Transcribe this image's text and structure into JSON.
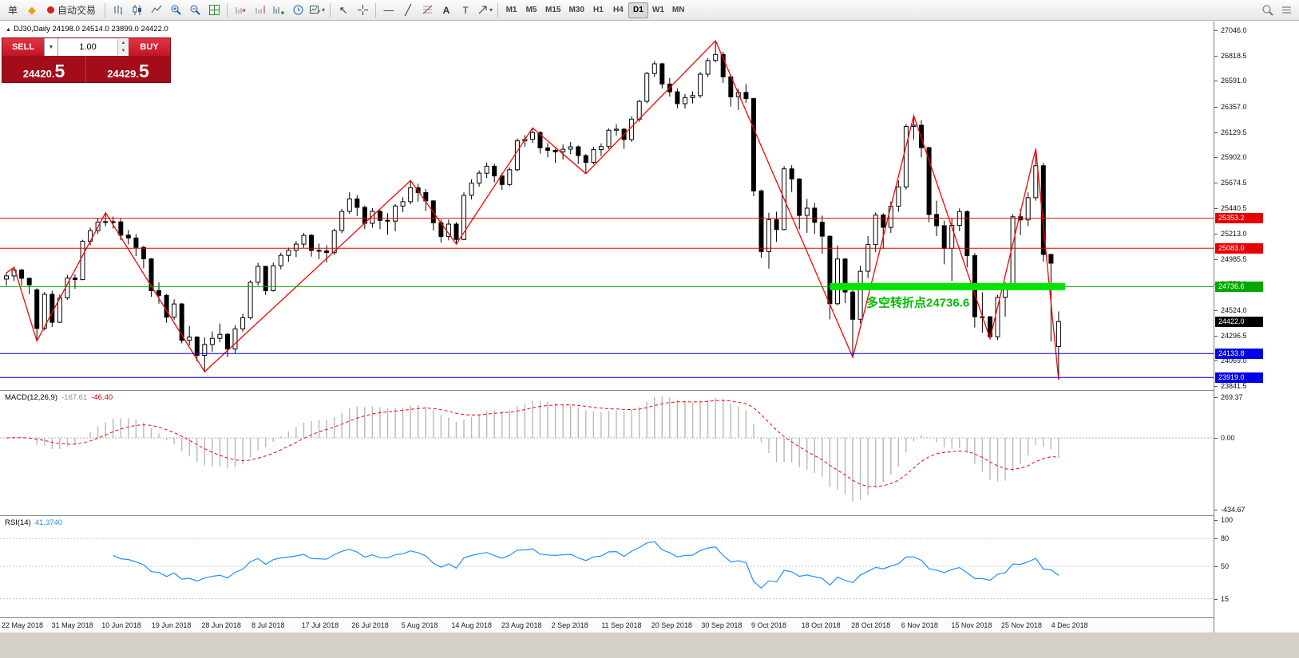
{
  "app": {
    "toolbar": {
      "order_button": "单",
      "autotrading_label": "自动交易",
      "timeframes": [
        "M1",
        "M5",
        "M15",
        "M30",
        "H1",
        "H4",
        "D1",
        "W1",
        "MN"
      ],
      "active_timeframe": "D1",
      "glyphs": {
        "diamond": "◆",
        "cursor": "↖",
        "hline": "―",
        "trendline": "╱",
        "text": "A",
        "label_tool": "T",
        "caret": "▾",
        "up": "▲",
        "down": "▼"
      }
    }
  },
  "trade_panel": {
    "sell_label": "SELL",
    "buy_label": "BUY",
    "volume": "1.00",
    "bid": "24420.5",
    "ask": "24429.5",
    "bid_small": "24420.",
    "bid_big": "5",
    "ask_small": "24429.",
    "ask_big": "5"
  },
  "chart": {
    "marker": "▲",
    "symbol_period": "DJ30,Daily",
    "ohlc_text": "24198.0 24514.0 23899.0 24422.0"
  },
  "chart_data": {
    "type": "candlestick",
    "symbol": "DJ30",
    "timeframe": "Daily",
    "title_ohlc": {
      "open": 24198.0,
      "high": 24514.0,
      "low": 23899.0,
      "close": 24422.0
    },
    "y_axis": {
      "max": 27046.0,
      "min": 23841.5,
      "ticks": [
        "27046.0",
        "26818.5",
        "26591.0",
        "26357.0",
        "26129.5",
        "25902.0",
        "25674.5",
        "25440.5",
        "25213.0",
        "24985.5",
        "24758.0",
        "24524.0",
        "24296.5",
        "24069.0",
        "23841.5"
      ]
    },
    "x_labels": [
      "22 May 2018",
      "31 May 2018",
      "10 Jun 2018",
      "19 Jun 2018",
      "28 Jun 2018",
      "8 Jul 2018",
      "17 Jul 2018",
      "26 Jul 2018",
      "5 Aug 2018",
      "14 Aug 2018",
      "23 Aug 2018",
      "2 Sep 2018",
      "11 Sep 2018",
      "20 Sep 2018",
      "30 Sep 2018",
      "9 Oct 2018",
      "18 Oct 2018",
      "28 Oct 2018",
      "6 Nov 2018",
      "15 Nov 2018",
      "25 Nov 2018",
      "4 Dec 2018"
    ],
    "candles": [
      [
        24805,
        24860,
        24745,
        24834
      ],
      [
        24834,
        24911,
        24788,
        24887
      ],
      [
        24887,
        24897,
        24746,
        24812
      ],
      [
        24812,
        24818,
        24668,
        24753
      ],
      [
        24708,
        24723,
        24247,
        24361
      ],
      [
        24361,
        24689,
        24342,
        24668
      ],
      [
        24668,
        24700,
        24373,
        24416
      ],
      [
        24416,
        24666,
        24410,
        24635
      ],
      [
        24635,
        24843,
        24619,
        24814
      ],
      [
        24814,
        24847,
        24717,
        24800
      ],
      [
        24800,
        25159,
        24795,
        25146
      ],
      [
        25146,
        25269,
        25110,
        25241
      ],
      [
        25241,
        25354,
        25211,
        25317
      ],
      [
        25317,
        25403,
        25280,
        25322
      ],
      [
        25322,
        25368,
        25260,
        25320
      ],
      [
        25320,
        25347,
        25155,
        25201
      ],
      [
        25201,
        25247,
        25117,
        25175
      ],
      [
        25175,
        25211,
        25013,
        25090
      ],
      [
        25090,
        25105,
        24902,
        24987
      ],
      [
        24987,
        24994,
        24645,
        24700
      ],
      [
        24700,
        24775,
        24583,
        24658
      ],
      [
        24658,
        24672,
        24412,
        24462
      ],
      [
        24462,
        24623,
        24436,
        24581
      ],
      [
        24581,
        24590,
        24225,
        24253
      ],
      [
        24253,
        24383,
        24207,
        24283
      ],
      [
        24283,
        24290,
        24062,
        24118
      ],
      [
        24118,
        24280,
        23970,
        24216
      ],
      [
        24216,
        24334,
        24150,
        24271
      ],
      [
        24271,
        24404,
        24235,
        24307
      ],
      [
        24307,
        24320,
        24101,
        24175
      ],
      [
        24175,
        24389,
        24136,
        24357
      ],
      [
        24357,
        24493,
        24331,
        24456
      ],
      [
        24456,
        24793,
        24441,
        24776
      ],
      [
        24776,
        24952,
        24747,
        24919
      ],
      [
        24919,
        24926,
        24662,
        24700
      ],
      [
        24700,
        24953,
        24692,
        24925
      ],
      [
        24925,
        25043,
        24893,
        25019
      ],
      [
        25019,
        25088,
        24961,
        25064
      ],
      [
        25064,
        25147,
        25002,
        25120
      ],
      [
        25120,
        25220,
        25081,
        25199
      ],
      [
        25199,
        25212,
        25007,
        25064
      ],
      [
        25064,
        25125,
        24984,
        25058
      ],
      [
        25058,
        25111,
        24953,
        25044
      ],
      [
        25044,
        25259,
        25021,
        25242
      ],
      [
        25242,
        25437,
        25218,
        25414
      ],
      [
        25414,
        25587,
        25392,
        25527
      ],
      [
        25527,
        25561,
        25373,
        25451
      ],
      [
        25451,
        25467,
        25254,
        25307
      ],
      [
        25307,
        25444,
        25268,
        25415
      ],
      [
        25415,
        25429,
        25255,
        25334
      ],
      [
        25334,
        25398,
        25205,
        25327
      ],
      [
        25327,
        25480,
        25236,
        25463
      ],
      [
        25463,
        25542,
        25408,
        25502
      ],
      [
        25502,
        25692,
        25479,
        25628
      ],
      [
        25628,
        25664,
        25503,
        25584
      ],
      [
        25584,
        25617,
        25417,
        25509
      ],
      [
        25509,
        25517,
        25243,
        25313
      ],
      [
        25313,
        25342,
        25131,
        25188
      ],
      [
        25188,
        25341,
        25154,
        25300
      ],
      [
        25300,
        25317,
        25120,
        25162
      ],
      [
        25162,
        25587,
        25154,
        25559
      ],
      [
        25559,
        25704,
        25522,
        25669
      ],
      [
        25669,
        25784,
        25637,
        25759
      ],
      [
        25759,
        25854,
        25717,
        25822
      ],
      [
        25822,
        25844,
        25676,
        25734
      ],
      [
        25734,
        25760,
        25608,
        25657
      ],
      [
        25657,
        25812,
        25642,
        25790
      ],
      [
        25790,
        26072,
        25774,
        26050
      ],
      [
        26050,
        26102,
        25998,
        26064
      ],
      [
        26064,
        26167,
        26032,
        26125
      ],
      [
        26125,
        26137,
        25935,
        25987
      ],
      [
        25987,
        26030,
        25903,
        25965
      ],
      [
        25965,
        25980,
        25852,
        25952
      ],
      [
        25952,
        26018,
        25882,
        25975
      ],
      [
        25975,
        26041,
        25932,
        25996
      ],
      [
        25996,
        26009,
        25842,
        25917
      ],
      [
        25917,
        25931,
        25754,
        25857
      ],
      [
        25857,
        25997,
        25839,
        25971
      ],
      [
        25971,
        26027,
        25912,
        25999
      ],
      [
        25999,
        26163,
        25976,
        26146
      ],
      [
        26146,
        26199,
        26097,
        26155
      ],
      [
        26155,
        26166,
        25979,
        26062
      ],
      [
        26062,
        26272,
        26041,
        26246
      ],
      [
        26246,
        26419,
        26223,
        26406
      ],
      [
        26406,
        26672,
        26388,
        26657
      ],
      [
        26657,
        26769,
        26626,
        26744
      ],
      [
        26744,
        26752,
        26522,
        26562
      ],
      [
        26562,
        26617,
        26449,
        26492
      ],
      [
        26492,
        26523,
        26344,
        26385
      ],
      [
        26385,
        26473,
        26341,
        26440
      ],
      [
        26440,
        26496,
        26388,
        26458
      ],
      [
        26458,
        26672,
        26437,
        26651
      ],
      [
        26651,
        26795,
        26624,
        26774
      ],
      [
        26774,
        26952,
        26757,
        26828
      ],
      [
        26828,
        26852,
        26571,
        26627
      ],
      [
        26627,
        26639,
        26358,
        26447
      ],
      [
        26447,
        26521,
        26330,
        26486
      ],
      [
        26486,
        26561,
        26393,
        26431
      ],
      [
        26431,
        26438,
        25551,
        25599
      ],
      [
        25599,
        25611,
        24997,
        25053
      ],
      [
        25053,
        25402,
        24900,
        25340
      ],
      [
        25340,
        25412,
        25140,
        25251
      ],
      [
        25251,
        25823,
        25244,
        25798
      ],
      [
        25798,
        25830,
        25590,
        25707
      ],
      [
        25707,
        25714,
        25253,
        25379
      ],
      [
        25379,
        25527,
        25222,
        25444
      ],
      [
        25444,
        25490,
        25212,
        25317
      ],
      [
        25317,
        25378,
        25034,
        25191
      ],
      [
        25191,
        25198,
        24442,
        24583
      ],
      [
        24583,
        25109,
        24569,
        24985
      ],
      [
        24985,
        24994,
        24589,
        24688
      ],
      [
        24688,
        24722,
        24100,
        24443
      ],
      [
        24443,
        24925,
        24404,
        24875
      ],
      [
        24875,
        25193,
        24812,
        25116
      ],
      [
        25116,
        25406,
        25047,
        25381
      ],
      [
        25381,
        25398,
        25078,
        25271
      ],
      [
        25271,
        25504,
        25222,
        25462
      ],
      [
        25462,
        25693,
        25412,
        25635
      ],
      [
        25635,
        26203,
        25611,
        26180
      ],
      [
        26180,
        26277,
        26062,
        26191
      ],
      [
        26191,
        26237,
        25902,
        25989
      ],
      [
        25989,
        25997,
        25317,
        25387
      ],
      [
        25387,
        25511,
        25193,
        25286
      ],
      [
        25286,
        25332,
        24938,
        25081
      ],
      [
        25081,
        25354,
        24787,
        25289
      ],
      [
        25289,
        25442,
        25236,
        25413
      ],
      [
        25413,
        25424,
        24911,
        25017
      ],
      [
        25017,
        25040,
        24369,
        24466
      ],
      [
        24466,
        24686,
        24323,
        24465
      ],
      [
        24465,
        24472,
        24268,
        24286
      ],
      [
        24286,
        24661,
        24256,
        24640
      ],
      [
        24640,
        24777,
        24465,
        24748
      ],
      [
        24748,
        25390,
        24726,
        25366
      ],
      [
        25366,
        25436,
        25201,
        25338
      ],
      [
        25338,
        25587,
        25283,
        25538
      ],
      [
        25538,
        25980,
        25511,
        25826
      ],
      [
        25826,
        25851,
        24963,
        25027
      ],
      [
        25027,
        25028,
        24242,
        24948
      ],
      [
        24198,
        24514,
        23899,
        24422
      ]
    ],
    "zigzag": [
      [
        0,
        24860
      ],
      [
        1,
        24911
      ],
      [
        4,
        24247
      ],
      [
        13,
        25403
      ],
      [
        26,
        23970
      ],
      [
        53,
        25692
      ],
      [
        59,
        25120
      ],
      [
        69,
        26167
      ],
      [
        76,
        25754
      ],
      [
        93,
        26952
      ],
      [
        111,
        24100
      ],
      [
        119,
        26277
      ],
      [
        129,
        24268
      ],
      [
        135,
        25980
      ],
      [
        138,
        23899
      ]
    ],
    "zigzag_color": "#ff0000",
    "hlines": [
      {
        "value": 25353.2,
        "label": "25353.2",
        "color": "#e60000"
      },
      {
        "value": 25083.0,
        "label": "25083.0",
        "color": "#e60000"
      },
      {
        "value": 24736.6,
        "label": "24736.6",
        "color": "#00a800"
      },
      {
        "value": 24133.8,
        "label": "24133.8",
        "color": "#0000e6"
      },
      {
        "value": 23919.0,
        "label": "23919.0",
        "color": "#0000e6"
      }
    ],
    "current_price": {
      "value": 24422.0,
      "label": "24422.0",
      "color": "#000000"
    },
    "highlight_segment": {
      "price": 24736.6,
      "from_index": 108,
      "to_index": 138,
      "color": "#00e400",
      "width": 9
    },
    "annotation": {
      "text": "多空转折点24736.6",
      "color": "#00be00"
    },
    "indicators": {
      "macd": {
        "name": "MACD(12,26,9)",
        "value1": "-167.61",
        "value2": "-46.40",
        "fast": 12,
        "slow": 26,
        "signal": 9,
        "ticks": [
          "269.37",
          "0.00",
          "-434.67"
        ],
        "histogram_color": "#b8b8b8",
        "signal_color": "#ff0000"
      },
      "rsi": {
        "name": "RSI(14)",
        "value": "41.3740",
        "period": 14,
        "levels": [
          80,
          50,
          15
        ],
        "ticks": [
          "100",
          "80",
          "50",
          "15"
        ],
        "line_color": "#1e90ff"
      }
    }
  }
}
